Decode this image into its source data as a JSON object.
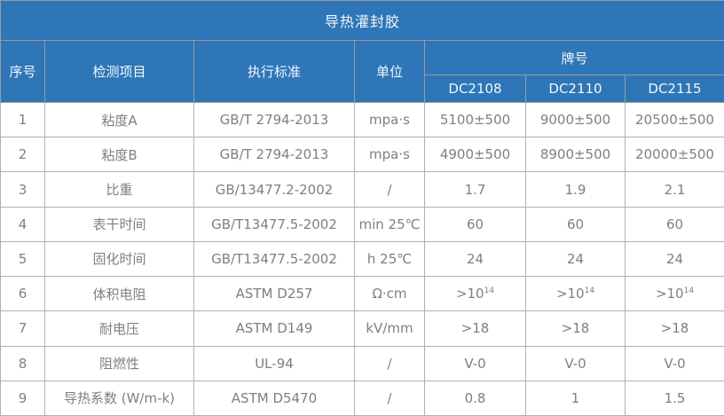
{
  "title": "导热灌封胶",
  "colors": {
    "header_bg": "#2e76b7",
    "header_text": "#ffffff",
    "body_text": "#7f7f7f",
    "border": "#b1b1b1"
  },
  "table": {
    "headers": {
      "no": "序号",
      "item": "检测项目",
      "standard": "执行标准",
      "unit": "单位",
      "brand": "牌号",
      "brands": [
        "DC2108",
        "DC2110",
        "DC2115"
      ]
    },
    "rows": [
      {
        "no": "1",
        "item": "粘度A",
        "standard": "GB/T 2794-2013",
        "unit": "mpa·s",
        "values": [
          "5100±500",
          "9000±500",
          "20500±500"
        ]
      },
      {
        "no": "2",
        "item": "粘度B",
        "standard": "GB/T 2794-2013",
        "unit": "mpa·s",
        "values": [
          "4900±500",
          "8900±500",
          "20000±500"
        ]
      },
      {
        "no": "3",
        "item": "比重",
        "standard": "GB/13477.2-2002",
        "unit": "/",
        "values": [
          "1.7",
          "1.9",
          "2.1"
        ]
      },
      {
        "no": "4",
        "item": "表干时间",
        "standard": "GB/T13477.5-2002",
        "unit": "min 25℃",
        "values": [
          "60",
          "60",
          "60"
        ]
      },
      {
        "no": "5",
        "item": "固化时间",
        "standard": "GB/T13477.5-2002",
        "unit": "h 25℃",
        "values": [
          "24",
          "24",
          "24"
        ]
      },
      {
        "no": "6",
        "item": "体积电阻",
        "standard": "ASTM D257",
        "unit": "Ω·cm",
        "values": [
          ">10^14",
          ">10^14",
          ">10^14"
        ]
      },
      {
        "no": "7",
        "item": "耐电压",
        "standard": "ASTM D149",
        "unit": "kV/mm",
        "values": [
          ">18",
          ">18",
          ">18"
        ]
      },
      {
        "no": "8",
        "item": "阻燃性",
        "standard": "UL-94",
        "unit": "/",
        "values": [
          "V-0",
          "V-0",
          "V-0"
        ]
      },
      {
        "no": "9",
        "item": "导热系数  (W/m-k)",
        "standard": "ASTM D5470",
        "unit": "/",
        "values": [
          "0.8",
          "1",
          "1.5"
        ]
      }
    ]
  }
}
